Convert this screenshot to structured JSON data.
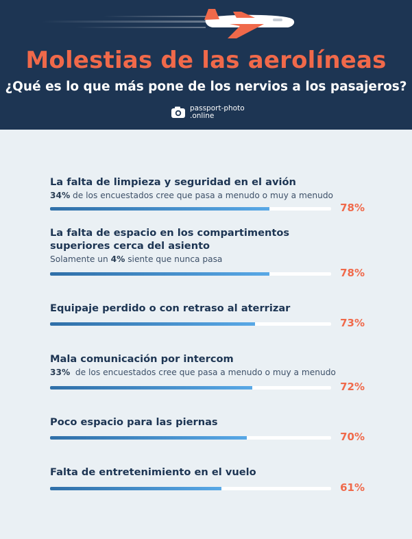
{
  "header": {
    "title": "Molestias de las aerolíneas",
    "subtitle": "¿Qué es lo que más pone de los nervios a los pasajeros?",
    "logo_line1": "passport-photo",
    "logo_line2": ".online",
    "icons": [
      "airplane-icon",
      "camera-icon"
    ]
  },
  "colors": {
    "accent": "#f0694a",
    "header_bg": "#1d3553",
    "bar": "#4a98d8",
    "page_bg": "#eaf0f4"
  },
  "chart_data": {
    "type": "bar",
    "orientation": "horizontal",
    "title": "Molestias de las aerolíneas",
    "subtitle": "¿Qué es lo que más pone de los nervios a los pasajeros?",
    "unit": "%",
    "xlim": [
      0,
      100
    ],
    "items": [
      {
        "label": "La falta de limpieza y seguridad en el avión",
        "note_bold": "34%",
        "note_text": " de los encuestados cree que pasa a menudo o muy a menudo",
        "value": 78,
        "display": "78%"
      },
      {
        "label": "La falta de espacio en los compartimentos superiores cerca del asiento",
        "note_pre": "Solamente un ",
        "note_bold": "4%",
        "note_text": " siente que nunca pasa",
        "value": 78,
        "display": "78%"
      },
      {
        "label": "Equipaje perdido o con retraso al aterrizar",
        "value": 73,
        "display": "73%"
      },
      {
        "label": "Mala comunicación por intercom",
        "note_bold": "33%",
        "note_text": "  de los encuestados cree que pasa a menudo o muy a menudo",
        "value": 72,
        "display": "72%"
      },
      {
        "label": "Poco espacio para las piernas",
        "value": 70,
        "display": "70%"
      },
      {
        "label": "Falta de entretenimiento en el vuelo",
        "value": 61,
        "display": "61%"
      }
    ]
  }
}
